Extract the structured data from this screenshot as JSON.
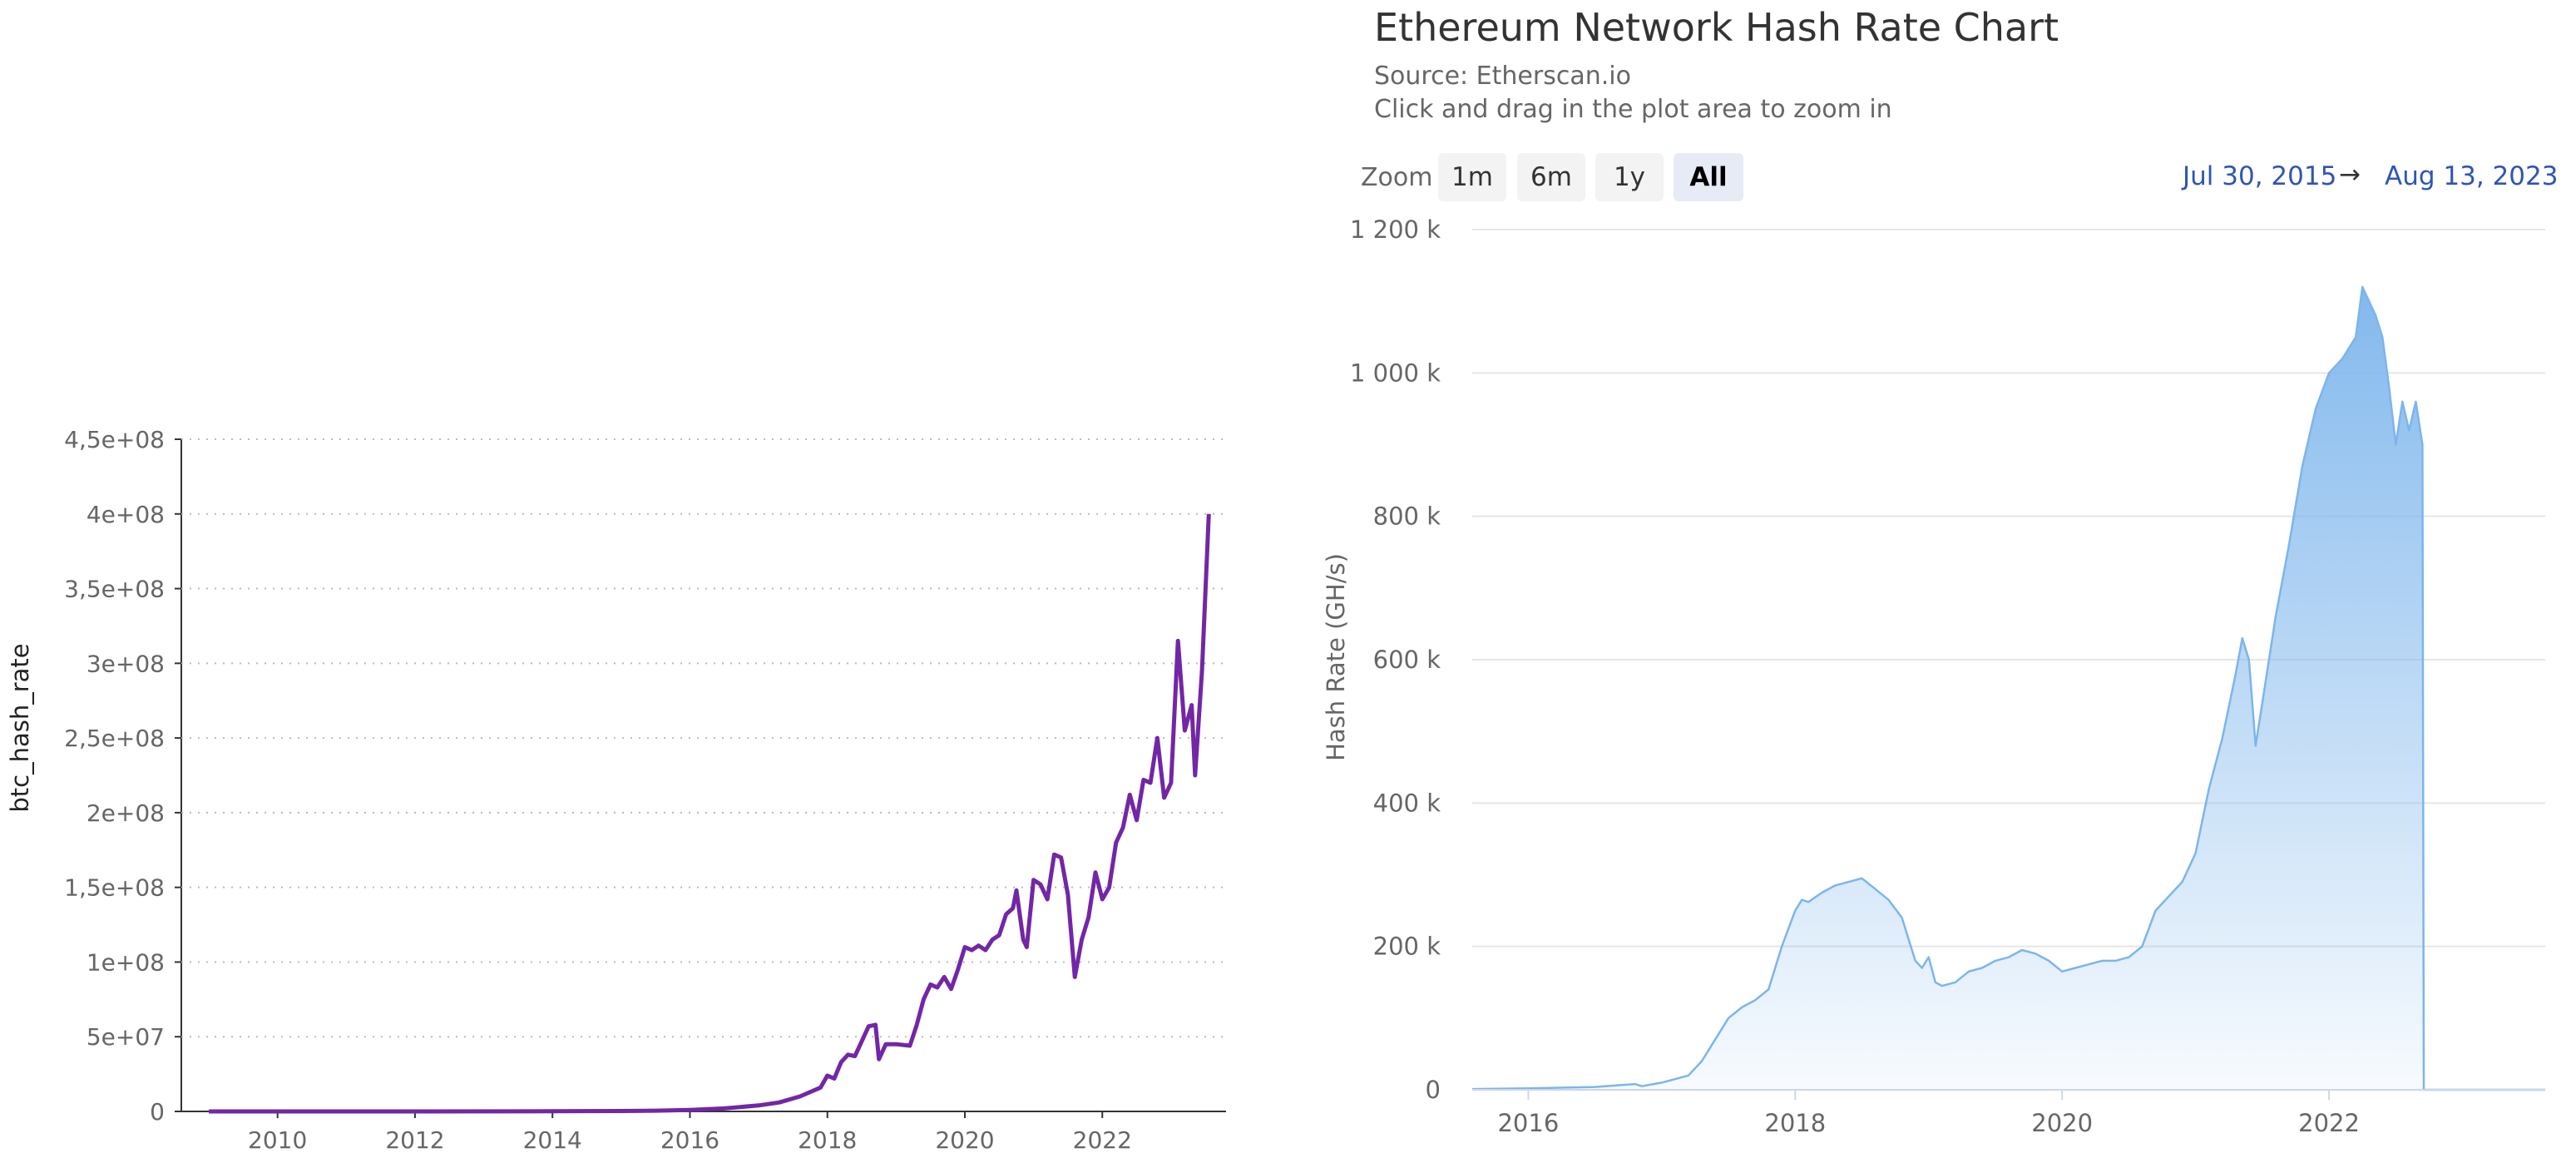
{
  "chart_data": [
    {
      "type": "line",
      "title": "",
      "xlabel": "",
      "ylabel": "btc_hash_rate",
      "xlim": [
        2008.6,
        2023.8
      ],
      "ylim": [
        0,
        450000000
      ],
      "x_ticks": [
        "2010",
        "2012",
        "2014",
        "2016",
        "2018",
        "2020",
        "2022"
      ],
      "y_ticks": [
        "0",
        "5e+07",
        "1e+08",
        "1,5e+08",
        "2e+08",
        "2,5e+08",
        "3e+08",
        "3,5e+08",
        "4e+08",
        "4,5e+08"
      ],
      "grid": "horizontal dotted",
      "color": "#7326a6",
      "series": [
        {
          "name": "btc_hash_rate",
          "x": [
            2009.0,
            2012.0,
            2014.0,
            2015.0,
            2015.5,
            2016.0,
            2016.5,
            2017.0,
            2017.3,
            2017.6,
            2017.9,
            2018.0,
            2018.1,
            2018.2,
            2018.3,
            2018.4,
            2018.5,
            2018.6,
            2018.7,
            2018.75,
            2018.85,
            2019.0,
            2019.2,
            2019.3,
            2019.4,
            2019.5,
            2019.6,
            2019.7,
            2019.8,
            2019.9,
            2020.0,
            2020.1,
            2020.2,
            2020.3,
            2020.4,
            2020.5,
            2020.6,
            2020.7,
            2020.75,
            2020.85,
            2020.9,
            2021.0,
            2021.1,
            2021.2,
            2021.3,
            2021.4,
            2021.5,
            2021.6,
            2021.7,
            2021.8,
            2021.9,
            2022.0,
            2022.1,
            2022.2,
            2022.3,
            2022.4,
            2022.5,
            2022.6,
            2022.7,
            2022.8,
            2022.9,
            2023.0,
            2023.1,
            2023.2,
            2023.3,
            2023.35,
            2023.45,
            2023.55
          ],
          "values": [
            0,
            0,
            100000,
            300000,
            500000,
            1000000,
            2000000,
            4000000,
            6000000,
            10000000,
            16000000,
            24000000,
            22000000,
            33000000,
            38000000,
            37000000,
            47000000,
            57000000,
            58000000,
            35000000,
            45000000,
            45000000,
            44000000,
            58000000,
            75000000,
            85000000,
            83000000,
            90000000,
            82000000,
            95000000,
            110000000,
            108000000,
            111000000,
            108000000,
            115000000,
            118000000,
            132000000,
            136000000,
            148000000,
            115000000,
            110000000,
            155000000,
            152000000,
            142000000,
            172000000,
            170000000,
            145000000,
            90000000,
            115000000,
            130000000,
            160000000,
            142000000,
            150000000,
            180000000,
            190000000,
            212000000,
            195000000,
            222000000,
            220000000,
            250000000,
            210000000,
            220000000,
            315000000,
            255000000,
            272000000,
            225000000,
            295000000,
            400000000
          ]
        }
      ]
    },
    {
      "type": "area",
      "title": "Ethereum Network Hash Rate Chart",
      "subtitle": "Source: Etherscan.io",
      "hint": "Click and drag in the plot area to zoom in",
      "xlabel": "",
      "ylabel": "Hash Rate (GH/s)",
      "xlim": [
        2015.58,
        2023.62
      ],
      "ylim": [
        0,
        1200000
      ],
      "x_ticks": [
        "2016",
        "2018",
        "2020",
        "2022"
      ],
      "y_ticks": [
        "0",
        "200 k",
        "400 k",
        "600 k",
        "800 k",
        "1 000 k",
        "1 200 k"
      ],
      "grid": "horizontal",
      "color": "#7cb5ec",
      "zoom": {
        "label": "Zoom",
        "buttons": [
          "1m",
          "6m",
          "1y",
          "All"
        ],
        "selected": "All"
      },
      "range": {
        "from": "Jul 30, 2015",
        "arrow": "→",
        "to": "Aug 13, 2023"
      },
      "series": [
        {
          "name": "Hash Rate",
          "x": [
            2015.58,
            2016.0,
            2016.5,
            2016.8,
            2016.85,
            2017.0,
            2017.2,
            2017.3,
            2017.4,
            2017.5,
            2017.6,
            2017.7,
            2017.8,
            2017.9,
            2018.0,
            2018.05,
            2018.1,
            2018.2,
            2018.3,
            2018.4,
            2018.5,
            2018.6,
            2018.7,
            2018.8,
            2018.9,
            2018.95,
            2019.0,
            2019.05,
            2019.1,
            2019.2,
            2019.3,
            2019.4,
            2019.5,
            2019.6,
            2019.7,
            2019.8,
            2019.9,
            2020.0,
            2020.1,
            2020.2,
            2020.3,
            2020.4,
            2020.5,
            2020.6,
            2020.7,
            2020.8,
            2020.9,
            2021.0,
            2021.1,
            2021.2,
            2021.3,
            2021.35,
            2021.4,
            2021.45,
            2021.5,
            2021.6,
            2021.7,
            2021.8,
            2021.9,
            2022.0,
            2022.1,
            2022.2,
            2022.25,
            2022.3,
            2022.35,
            2022.4,
            2022.45,
            2022.5,
            2022.55,
            2022.6,
            2022.65,
            2022.7,
            2022.71,
            2023.62
          ],
          "values": [
            1000,
            2000,
            4000,
            8000,
            5000,
            10000,
            20000,
            40000,
            70000,
            100000,
            115000,
            125000,
            140000,
            200000,
            250000,
            265000,
            262000,
            275000,
            285000,
            290000,
            295000,
            280000,
            265000,
            240000,
            180000,
            170000,
            185000,
            150000,
            145000,
            150000,
            165000,
            170000,
            180000,
            185000,
            195000,
            190000,
            180000,
            165000,
            170000,
            175000,
            180000,
            180000,
            185000,
            200000,
            250000,
            270000,
            290000,
            330000,
            420000,
            490000,
            580000,
            630000,
            600000,
            480000,
            540000,
            660000,
            760000,
            870000,
            950000,
            1000000,
            1020000,
            1050000,
            1120000,
            1100000,
            1080000,
            1050000,
            980000,
            900000,
            960000,
            920000,
            960000,
            900000,
            0,
            0
          ]
        }
      ]
    }
  ]
}
